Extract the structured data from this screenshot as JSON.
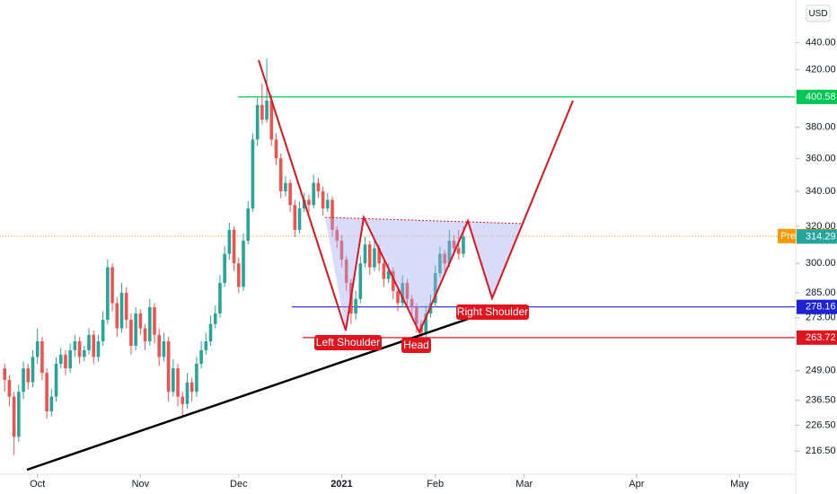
{
  "chart_data": {
    "type": "candlestick",
    "currency": "USD",
    "log_scale": true,
    "grid": false,
    "up_color": "#26a69a",
    "down_color": "#ef5350",
    "xlim": [
      -8,
      162
    ],
    "ylim": [
      208,
      474
    ],
    "xticks": [
      {
        "value": 0,
        "label": "Oct"
      },
      {
        "value": 22,
        "label": "Nov"
      },
      {
        "value": 43,
        "label": "Dec"
      },
      {
        "value": 65,
        "label": "2021"
      },
      {
        "value": 85,
        "label": "Feb"
      },
      {
        "value": 104,
        "label": "Mar"
      },
      {
        "value": 128,
        "label": "Apr"
      },
      {
        "value": 150,
        "label": "May"
      }
    ],
    "yticks": [
      {
        "value": 440,
        "label": "440.00"
      },
      {
        "value": 420,
        "label": "420.00"
      },
      {
        "value": 380,
        "label": "380.00"
      },
      {
        "value": 360,
        "label": "360.00"
      },
      {
        "value": 340,
        "label": "340.00"
      },
      {
        "value": 320,
        "label": "320.00"
      },
      {
        "value": 300,
        "label": "300.00"
      },
      {
        "value": 285,
        "label": "285.00"
      },
      {
        "value": 273,
        "label": "273.00"
      },
      {
        "value": 249,
        "label": "249.00"
      },
      {
        "value": 236.5,
        "label": "236.50"
      },
      {
        "value": 226.5,
        "label": "226.50"
      },
      {
        "value": 216.5,
        "label": "216.50"
      }
    ],
    "levels": [
      {
        "value": 400.58,
        "color": "#00c853"
      },
      {
        "value": 278.16,
        "color": "#1e22d6"
      },
      {
        "value": 263.72,
        "color": "#e0141e"
      }
    ],
    "premarket": {
      "label": "Pre",
      "value": 314.56,
      "color": "#ff9800"
    },
    "annotations": {
      "left_shoulder": "Left Shoulder",
      "head": "Head",
      "right_shoulder": "Right Shoulder"
    },
    "x": [
      -7,
      -6,
      -5,
      -4,
      -3,
      -2,
      -1,
      0,
      1,
      2,
      3,
      4,
      5,
      6,
      7,
      8,
      9,
      10,
      11,
      12,
      13,
      14,
      15,
      16,
      17,
      18,
      19,
      20,
      21,
      22,
      23,
      24,
      25,
      26,
      27,
      28,
      29,
      30,
      31,
      32,
      33,
      34,
      35,
      36,
      37,
      38,
      39,
      40,
      41,
      42,
      43,
      44,
      45,
      46,
      47,
      48,
      49,
      50,
      51,
      52,
      53,
      54,
      55,
      56,
      57,
      58,
      59,
      60,
      61,
      62,
      63,
      64,
      65,
      66,
      67,
      68,
      69,
      70,
      71,
      72,
      73,
      74,
      75,
      76,
      77,
      78,
      79,
      80,
      81,
      82,
      83,
      84,
      85,
      86,
      87,
      88,
      89,
      90,
      91
    ],
    "candles": [
      [
        250,
        252,
        240,
        245
      ],
      [
        245,
        247,
        234,
        238
      ],
      [
        238,
        240,
        215,
        222
      ],
      [
        222,
        243,
        220,
        240
      ],
      [
        240,
        253,
        237,
        250
      ],
      [
        250,
        252,
        241,
        244
      ],
      [
        244,
        258,
        242,
        255
      ],
      [
        255,
        268,
        252,
        262
      ],
      [
        262,
        264,
        245,
        248
      ],
      [
        248,
        250,
        229,
        232
      ],
      [
        232,
        241,
        230,
        238
      ],
      [
        238,
        255,
        236,
        252
      ],
      [
        252,
        259,
        250,
        256
      ],
      [
        256,
        258,
        247,
        250
      ],
      [
        250,
        261,
        248,
        258
      ],
      [
        258,
        265,
        255,
        262
      ],
      [
        262,
        264,
        252,
        255
      ],
      [
        255,
        260,
        253,
        258
      ],
      [
        258,
        268,
        256,
        265
      ],
      [
        265,
        267,
        252,
        255
      ],
      [
        255,
        265,
        253,
        262
      ],
      [
        262,
        276,
        260,
        272
      ],
      [
        272,
        302,
        270,
        298
      ],
      [
        298,
        300,
        276,
        280
      ],
      [
        280,
        283,
        264,
        268
      ],
      [
        268,
        290,
        266,
        285
      ],
      [
        285,
        288,
        268,
        272
      ],
      [
        272,
        275,
        256,
        260
      ],
      [
        260,
        278,
        258,
        275
      ],
      [
        275,
        277,
        265,
        268
      ],
      [
        268,
        270,
        258,
        262
      ],
      [
        262,
        282,
        260,
        278
      ],
      [
        278,
        280,
        261,
        265
      ],
      [
        265,
        268,
        251,
        255
      ],
      [
        255,
        266,
        253,
        262
      ],
      [
        262,
        264,
        236,
        240
      ],
      [
        240,
        254,
        238,
        250
      ],
      [
        250,
        252,
        234,
        238
      ],
      [
        238,
        240,
        230,
        235
      ],
      [
        235,
        248,
        233,
        244
      ],
      [
        244,
        246,
        236,
        240
      ],
      [
        240,
        255,
        238,
        252
      ],
      [
        252,
        262,
        250,
        258
      ],
      [
        258,
        266,
        256,
        262
      ],
      [
        262,
        274,
        260,
        270
      ],
      [
        270,
        279,
        268,
        275
      ],
      [
        275,
        294,
        273,
        290
      ],
      [
        290,
        309,
        288,
        305
      ],
      [
        305,
        322,
        302,
        318
      ],
      [
        318,
        320,
        296,
        300
      ],
      [
        300,
        303,
        285,
        288
      ],
      [
        288,
        316,
        286,
        312
      ],
      [
        312,
        334,
        310,
        330
      ],
      [
        330,
        376,
        328,
        372
      ],
      [
        372,
        400,
        368,
        395
      ],
      [
        395,
        410,
        382,
        385
      ],
      [
        385,
        428,
        383,
        398
      ],
      [
        398,
        402,
        368,
        372
      ],
      [
        372,
        376,
        356,
        360
      ],
      [
        360,
        363,
        336,
        340
      ],
      [
        340,
        349,
        337,
        345
      ],
      [
        345,
        347,
        328,
        332
      ],
      [
        332,
        335,
        314,
        318
      ],
      [
        318,
        334,
        316,
        330
      ],
      [
        330,
        339,
        328,
        335
      ],
      [
        335,
        338,
        328,
        332
      ],
      [
        332,
        350,
        330,
        345
      ],
      [
        345,
        348,
        336,
        340
      ],
      [
        340,
        343,
        326,
        330
      ],
      [
        330,
        339,
        328,
        335
      ],
      [
        335,
        337,
        314,
        318
      ],
      [
        318,
        320,
        308,
        312
      ],
      [
        312,
        315,
        298,
        302
      ],
      [
        302,
        304,
        286,
        290
      ],
      [
        290,
        292,
        270,
        275
      ],
      [
        275,
        286,
        272,
        282
      ],
      [
        282,
        304,
        280,
        300
      ],
      [
        300,
        314,
        298,
        310
      ],
      [
        310,
        312,
        294,
        298
      ],
      [
        298,
        312,
        296,
        308
      ],
      [
        308,
        310,
        296,
        300
      ],
      [
        300,
        302,
        288,
        292
      ],
      [
        292,
        300,
        290,
        296
      ],
      [
        296,
        298,
        282,
        286
      ],
      [
        286,
        288,
        276,
        280
      ],
      [
        280,
        294,
        278,
        290
      ],
      [
        290,
        292,
        278,
        282
      ],
      [
        282,
        284,
        274,
        278
      ],
      [
        278,
        280,
        266,
        270
      ],
      [
        270,
        272,
        262,
        266
      ],
      [
        266,
        279,
        264,
        275
      ],
      [
        275,
        284,
        273,
        280
      ],
      [
        280,
        299,
        278,
        295
      ],
      [
        295,
        309,
        293,
        305
      ],
      [
        305,
        307,
        296,
        300
      ],
      [
        300,
        318,
        298,
        312
      ],
      [
        312,
        315,
        304,
        308
      ],
      [
        308,
        318,
        302,
        305
      ],
      [
        305,
        320,
        303,
        314.29
      ]
    ]
  }
}
